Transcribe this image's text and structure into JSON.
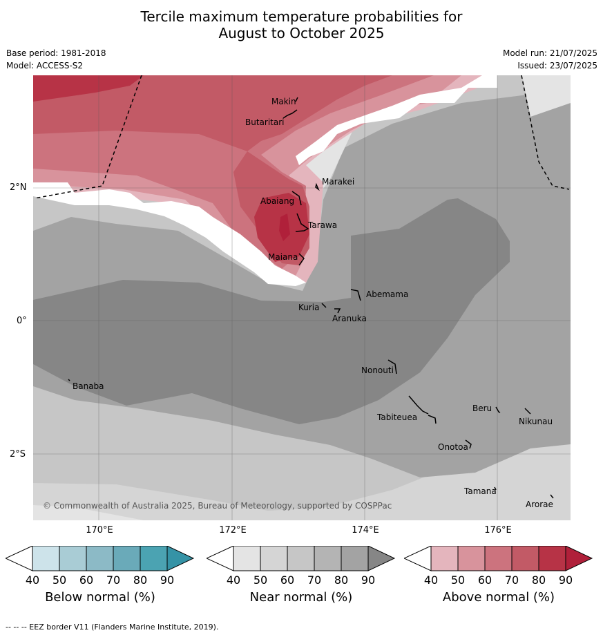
{
  "title_line1": "Tercile maximum temperature probabilities for",
  "title_line2": "August to October 2025",
  "base_period": "Base period: 1981-2018",
  "model": "Model: ACCESS-S2",
  "model_run": "Model run: 21/07/2025",
  "issued": "Issued: 23/07/2025",
  "copyright": "© Commonwealth of Australia 2025, Bureau of Meteorology, supported by COSPPac",
  "footnote": "--  --  -- EEZ border V11 (Flanders Marine Institute, 2019).",
  "lat_labels": [
    "2°N",
    "0°",
    "2°S"
  ],
  "lon_labels": [
    "170°E",
    "172°E",
    "174°E",
    "176°E"
  ],
  "places": [
    "Makin",
    "Butaritari",
    "Marakei",
    "Abaiang",
    "Tarawa",
    "Maiana",
    "Abemama",
    "Kuria",
    "Aranuka",
    "Nonouti",
    "Banaba",
    "Tabiteuea",
    "Beru",
    "Nikunau",
    "Onotoa",
    "Tamana",
    "Arorae"
  ],
  "legends": [
    {
      "title": "Below normal (%)",
      "ticks": [
        "40",
        "50",
        "60",
        "70",
        "80",
        "90"
      ],
      "colors": [
        "#ffffff",
        "#cde3ea",
        "#a9ccd5",
        "#8cbac6",
        "#6aaab9",
        "#4ba3b2",
        "#3593a6"
      ]
    },
    {
      "title": "Near normal (%)",
      "ticks": [
        "40",
        "50",
        "60",
        "70",
        "80",
        "90"
      ],
      "colors": [
        "#ffffff",
        "#e4e4e4",
        "#d5d5d5",
        "#c6c6c6",
        "#b4b4b4",
        "#a3a3a3",
        "#868686"
      ]
    },
    {
      "title": "Above normal (%)",
      "ticks": [
        "40",
        "50",
        "60",
        "70",
        "80",
        "90"
      ],
      "colors": [
        "#ffffff",
        "#e4b5bd",
        "#d8939c",
        "#cc737e",
        "#c25a66",
        "#b73346",
        "#b0203a"
      ]
    }
  ]
}
